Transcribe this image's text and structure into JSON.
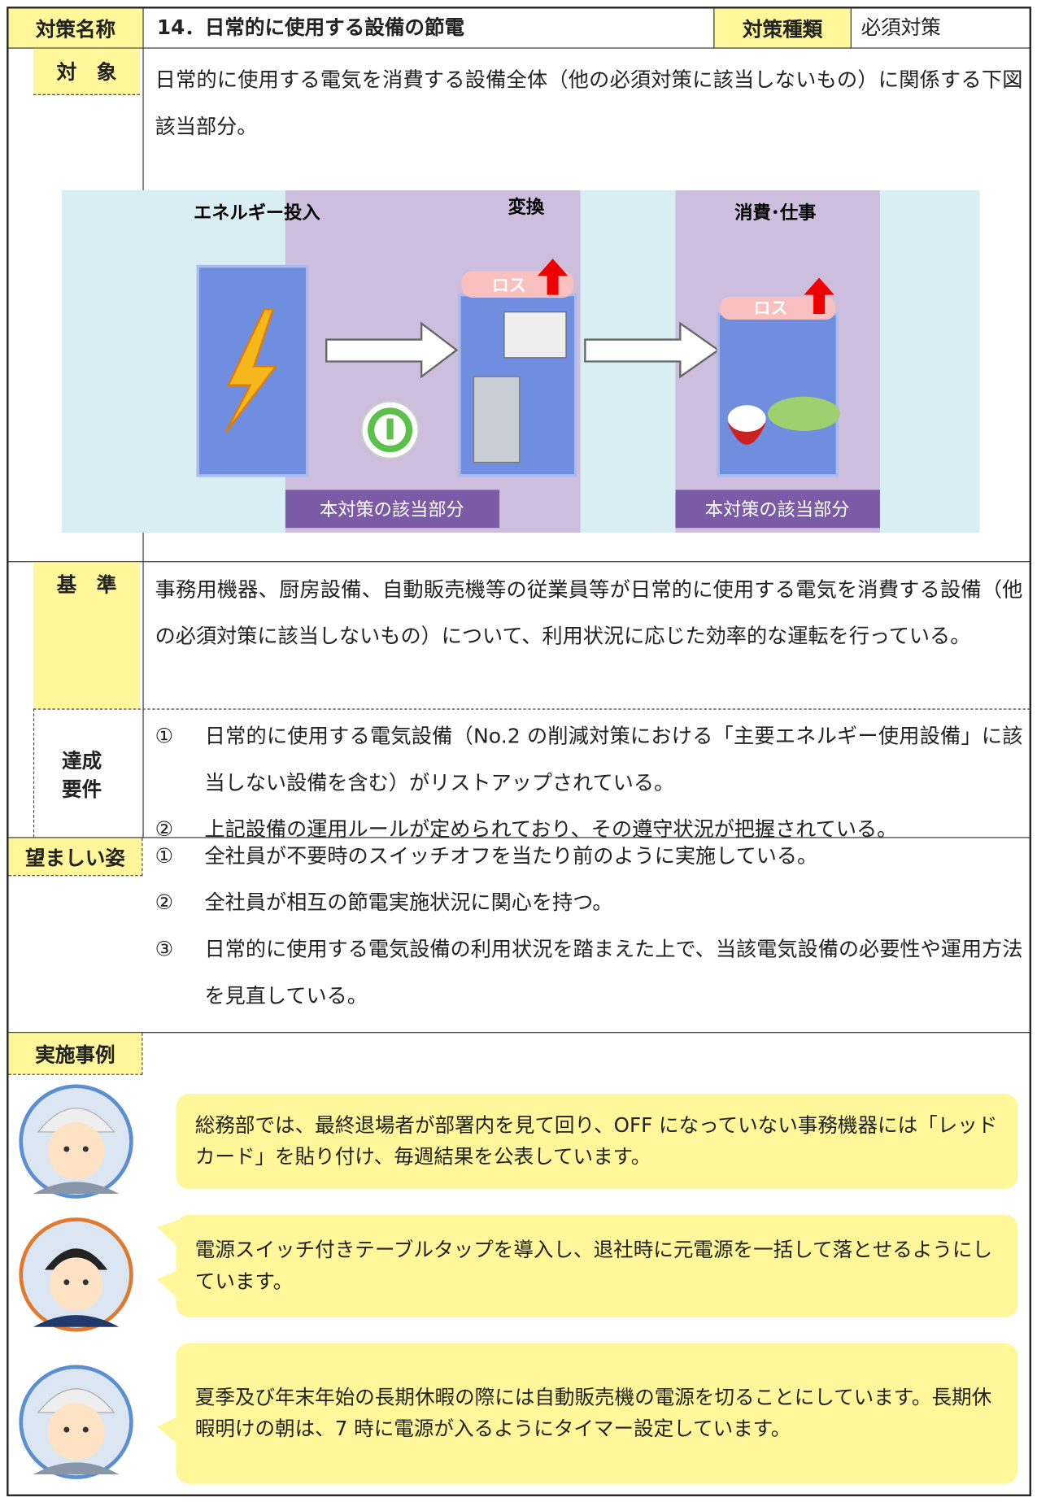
{
  "header": {
    "name_label": "対策名称",
    "name": "14．日常的に使用する設備の節電",
    "type_label": "対策種類",
    "type": "必須対策"
  },
  "target": {
    "label": "対　象",
    "text": "日常的に使用する電気を消費する設備全体（他の必須対策に該当しないもの）に関係する下図該当部分。"
  },
  "diagram": {
    "input": "エネルギー投入",
    "convert": "変換",
    "consume": "消費･仕事",
    "loss_labels": [
      "ロス",
      "ロス"
    ],
    "scope_labels": [
      "本対策の該当部分",
      "本対策の該当部分"
    ]
  },
  "criteria": {
    "label": "基　準",
    "text": "事務用機器、厨房設備、自動販売機等の従業員等が日常的に使用する電気を消費する設備（他の必須対策に該当しないもの）について、利用状況に応じた効率的な運転を行っている。"
  },
  "requirements": {
    "label": "達成要件",
    "items": [
      {
        "marker": "①",
        "text": "日常的に使用する電気設備（No.2 の削減対策における「主要エネルギー使用設備」に該当しない設備を含む）がリストアップされている。"
      },
      {
        "marker": "②",
        "text": "上記設備の運用ルールが定められており、その遵守状況が把握されている。"
      }
    ]
  },
  "ideal": {
    "label": "望ましい姿",
    "items": [
      {
        "marker": "①",
        "text": "全社員が不要時のスイッチオフを当たり前のように実施している。"
      },
      {
        "marker": "②",
        "text": "全社員が相互の節電実施状況に関心を持つ。"
      },
      {
        "marker": "③",
        "text": "日常的に使用する電気設備の利用状況を踏まえた上で、当該電気設備の必要性や運用方法を見直している。"
      }
    ]
  },
  "examples": {
    "label": "実施事例",
    "items": [
      "総務部では、最終退場者が部署内を見て回り、OFF になっていない事務機器には「レッドカード」を貼り付け、毎週結果を公表しています。",
      "電源スイッチ付きテーブルタップを導入し、退社時に元電源を一括して落とせるようにしています。",
      "夏季及び年末年始の長期休暇の際には自動販売機の電源を切ることにしています。長期休暇明けの朝は、7 時に電源が入るようにタイマー設定しています。"
    ]
  }
}
